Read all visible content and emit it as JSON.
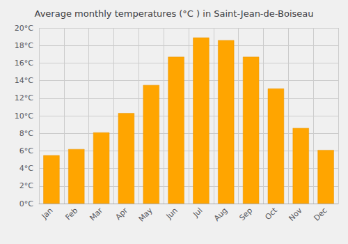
{
  "chart_data": {
    "type": "bar",
    "title": "Average monthly temperatures (°C ) in Saint-Jean-de-Boiseau",
    "categories": [
      "Jan",
      "Feb",
      "Mar",
      "Apr",
      "May",
      "Jun",
      "Jul",
      "Aug",
      "Sep",
      "Oct",
      "Nov",
      "Dec"
    ],
    "values": [
      5.5,
      6.2,
      8.1,
      10.3,
      13.5,
      16.7,
      18.9,
      18.6,
      16.7,
      13.1,
      8.6,
      6.1
    ],
    "color": "#FFA500",
    "ylim": [
      0,
      20
    ],
    "yticks": [
      {
        "value": 0,
        "label": "0°C"
      },
      {
        "value": 2,
        "label": "2°C"
      },
      {
        "value": 4,
        "label": "4°C"
      },
      {
        "value": 6,
        "label": "6°C"
      },
      {
        "value": 8,
        "label": "8°C"
      },
      {
        "value": 10,
        "label": "10°C"
      },
      {
        "value": 12,
        "label": "12°C"
      },
      {
        "value": 14,
        "label": "14°C"
      },
      {
        "value": 16,
        "label": "16°C"
      },
      {
        "value": 18,
        "label": "18°C"
      },
      {
        "value": 20,
        "label": "20°C"
      }
    ],
    "grid": true
  }
}
